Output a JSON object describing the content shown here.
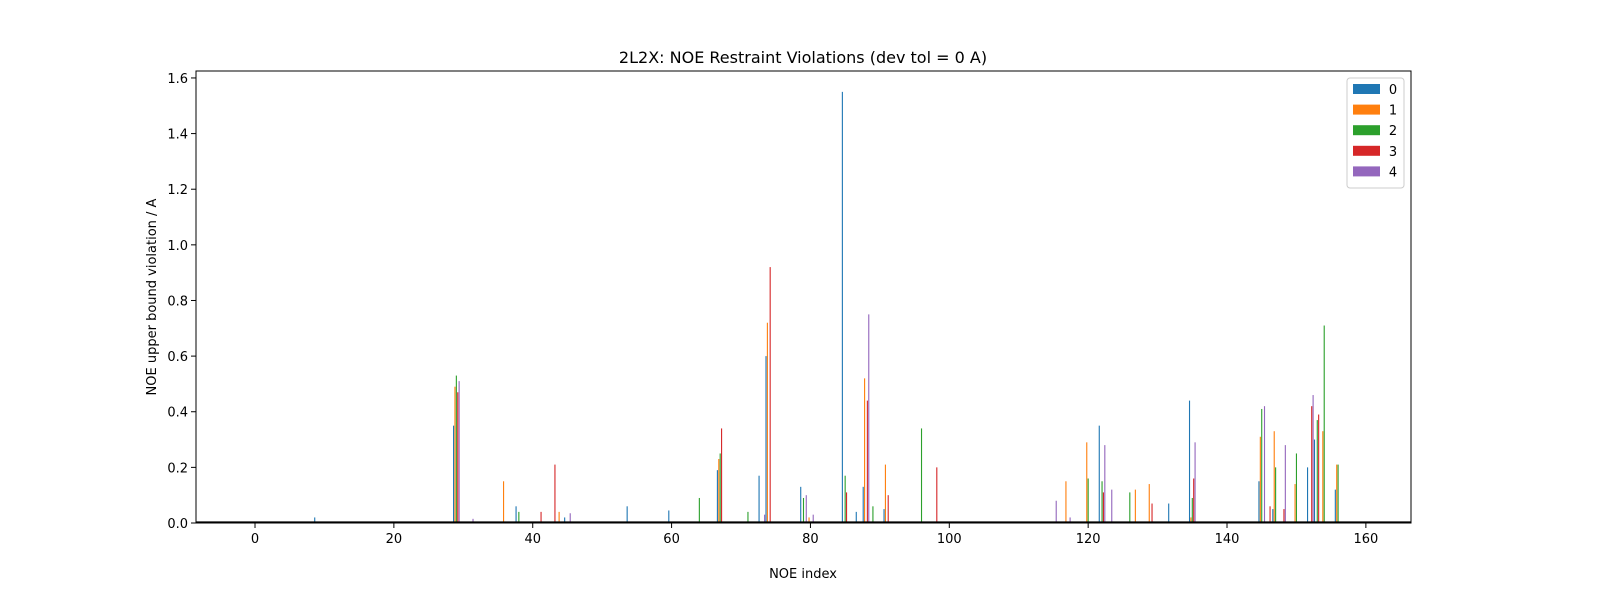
{
  "chart_data": {
    "type": "bar",
    "title": "2L2X: NOE Restraint Violations (dev tol = 0 A)",
    "xlabel": "NOE index",
    "ylabel": "NOE upper bound violation / A",
    "xlim": [
      -8.5,
      166.5
    ],
    "ylim": [
      0,
      1.625
    ],
    "xticks": [
      0,
      20,
      40,
      60,
      80,
      100,
      120,
      140,
      160
    ],
    "yticks": [
      0.0,
      0.2,
      0.4,
      0.6,
      0.8,
      1.0,
      1.2,
      1.4,
      1.6
    ],
    "xtick_labels": [
      "0",
      "20",
      "40",
      "60",
      "80",
      "100",
      "120",
      "140",
      "160"
    ],
    "ytick_labels": [
      "0.0",
      "0.2",
      "0.4",
      "0.6",
      "0.8",
      "1.0",
      "1.2",
      "1.4",
      "1.6"
    ],
    "legend_position": "top-right",
    "bar_group_width": 0.8,
    "series": [
      {
        "name": "0",
        "color": "#1f77b4",
        "points": [
          [
            8.6,
            0.02
          ],
          [
            28.6,
            0.35
          ],
          [
            37.6,
            0.06
          ],
          [
            44.6,
            0.02
          ],
          [
            53.6,
            0.06
          ],
          [
            59.6,
            0.045
          ],
          [
            66.6,
            0.19
          ],
          [
            72.6,
            0.17
          ],
          [
            73.6,
            0.6
          ],
          [
            78.6,
            0.13
          ],
          [
            84.6,
            1.55
          ],
          [
            86.6,
            0.04
          ],
          [
            87.6,
            0.13
          ],
          [
            90.6,
            0.05
          ],
          [
            121.6,
            0.35
          ],
          [
            131.6,
            0.07
          ],
          [
            134.6,
            0.44
          ],
          [
            144.6,
            0.15
          ],
          [
            146.6,
            0.05
          ],
          [
            151.6,
            0.2
          ],
          [
            152.6,
            0.3
          ],
          [
            155.6,
            0.12
          ]
        ]
      },
      {
        "name": "1",
        "color": "#ff7f0e",
        "points": [
          [
            28.8,
            0.49
          ],
          [
            35.8,
            0.15
          ],
          [
            43.8,
            0.04
          ],
          [
            66.8,
            0.23
          ],
          [
            73.8,
            0.72
          ],
          [
            79.8,
            0.02
          ],
          [
            87.8,
            0.52
          ],
          [
            90.8,
            0.21
          ],
          [
            116.8,
            0.15
          ],
          [
            119.8,
            0.29
          ],
          [
            126.8,
            0.12
          ],
          [
            128.8,
            0.14
          ],
          [
            134.8,
            0.02
          ],
          [
            144.8,
            0.31
          ],
          [
            146.8,
            0.33
          ],
          [
            149.8,
            0.14
          ],
          [
            153.8,
            0.33
          ],
          [
            155.8,
            0.21
          ]
        ]
      },
      {
        "name": "2",
        "color": "#2ca02c",
        "points": [
          [
            29.0,
            0.53
          ],
          [
            38.0,
            0.04
          ],
          [
            64.0,
            0.09
          ],
          [
            67.0,
            0.25
          ],
          [
            71.0,
            0.04
          ],
          [
            79.0,
            0.09
          ],
          [
            85.0,
            0.17
          ],
          [
            89.0,
            0.06
          ],
          [
            96.0,
            0.34
          ],
          [
            120.0,
            0.16
          ],
          [
            122.0,
            0.15
          ],
          [
            126.0,
            0.11
          ],
          [
            135.0,
            0.09
          ],
          [
            145.0,
            0.41
          ],
          [
            147.0,
            0.2
          ],
          [
            150.0,
            0.25
          ],
          [
            153.0,
            0.37
          ],
          [
            154.0,
            0.71
          ],
          [
            156.0,
            0.21
          ]
        ]
      },
      {
        "name": "3",
        "color": "#d62728",
        "points": [
          [
            29.2,
            0.47
          ],
          [
            41.2,
            0.04
          ],
          [
            43.2,
            0.21
          ],
          [
            67.2,
            0.34
          ],
          [
            74.2,
            0.92
          ],
          [
            85.2,
            0.11
          ],
          [
            88.2,
            0.44
          ],
          [
            91.2,
            0.1
          ],
          [
            98.2,
            0.2
          ],
          [
            122.2,
            0.11
          ],
          [
            129.2,
            0.07
          ],
          [
            135.2,
            0.16
          ],
          [
            146.2,
            0.06
          ],
          [
            148.2,
            0.05
          ],
          [
            152.2,
            0.42
          ],
          [
            153.2,
            0.39
          ]
        ]
      },
      {
        "name": "4",
        "color": "#9467bd",
        "points": [
          [
            29.4,
            0.51
          ],
          [
            31.4,
            0.015
          ],
          [
            45.4,
            0.035
          ],
          [
            73.4,
            0.03
          ],
          [
            79.4,
            0.1
          ],
          [
            80.4,
            0.03
          ],
          [
            88.4,
            0.75
          ],
          [
            115.4,
            0.08
          ],
          [
            117.4,
            0.02
          ],
          [
            122.4,
            0.28
          ],
          [
            123.4,
            0.12
          ],
          [
            135.4,
            0.29
          ],
          [
            145.4,
            0.42
          ],
          [
            148.4,
            0.28
          ],
          [
            152.4,
            0.46
          ]
        ]
      }
    ]
  }
}
